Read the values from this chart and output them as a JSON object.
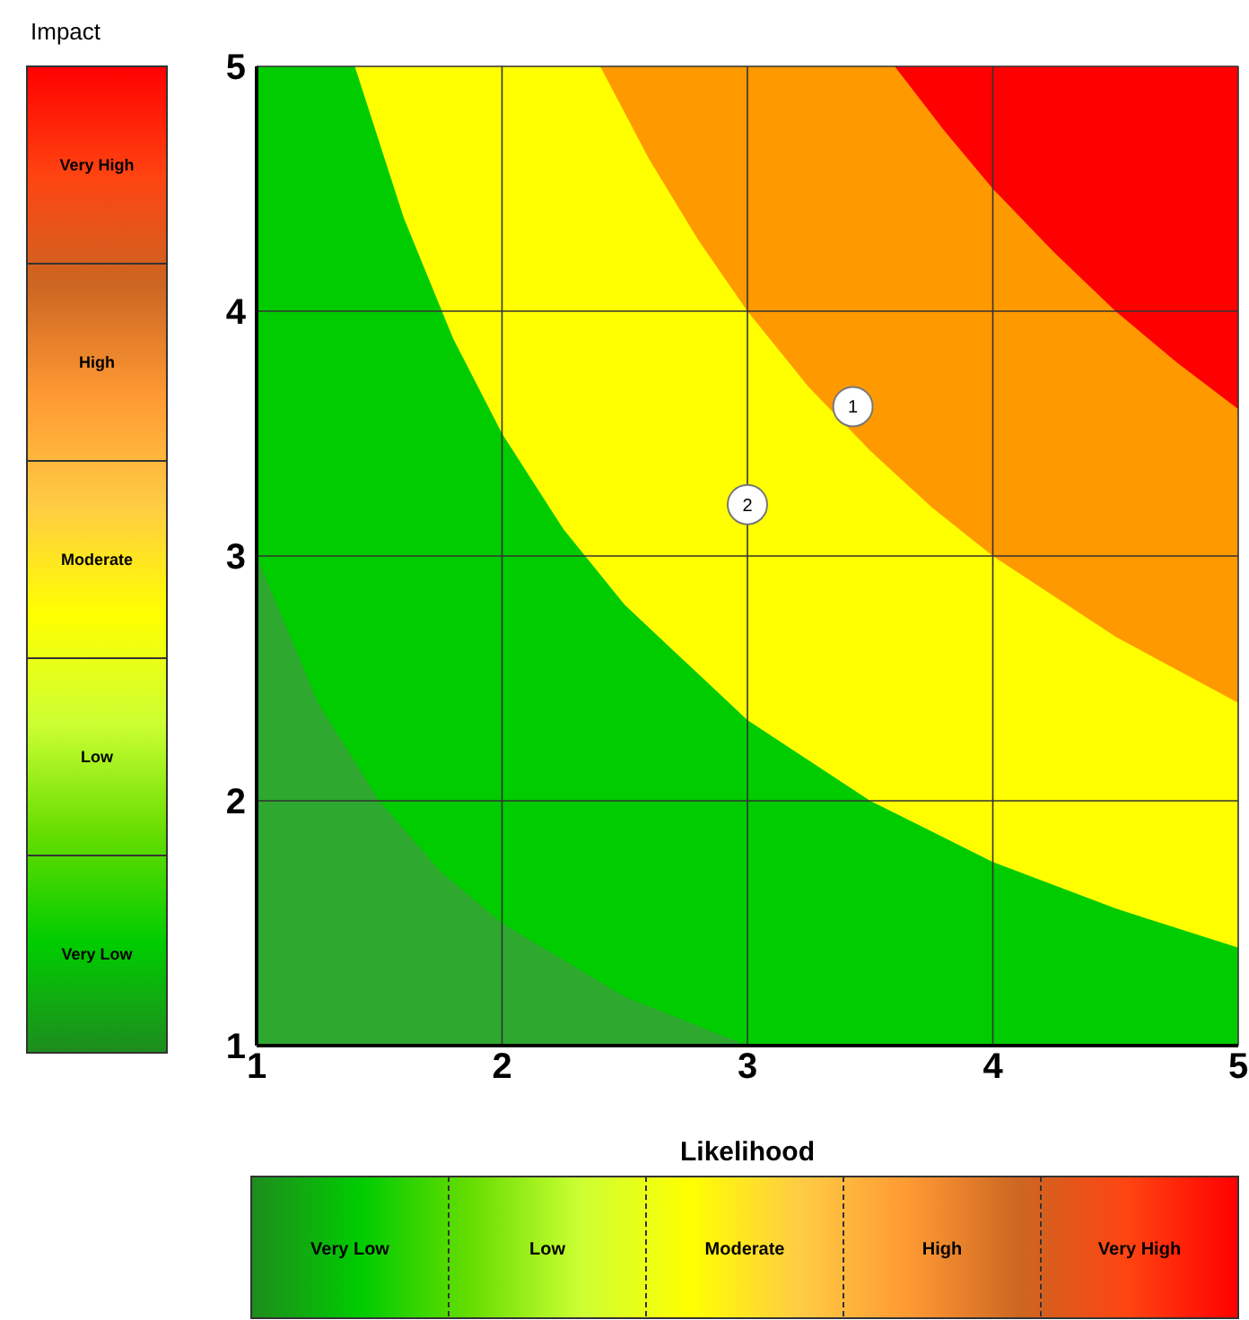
{
  "chart_data": {
    "type": "area",
    "xlabel": "Likelihood",
    "xlim": [
      1,
      5
    ],
    "ylim": [
      1,
      5
    ],
    "xticks": [
      1,
      2,
      3,
      4,
      5
    ],
    "yticks": [
      1,
      2,
      3,
      4,
      5
    ],
    "grid": true,
    "series": [
      {
        "color": "#ff0000",
        "x": [
          3.6,
          5
        ],
        "values": [
          5,
          5
        ]
      },
      {
        "color": "#ff9900",
        "x": [
          2.4,
          3.6,
          3.8,
          4,
          4.25,
          4.5,
          4.75,
          5
        ],
        "values": [
          5,
          5,
          4.74,
          4.5,
          4.24,
          4,
          3.79,
          3.6
        ]
      },
      {
        "color": "#ffff00",
        "x": [
          1.4,
          2.4,
          2.6,
          2.8,
          3,
          3.25,
          3.5,
          3.75,
          4,
          4.5,
          5
        ],
        "values": [
          5,
          5,
          4.62,
          4.29,
          4,
          3.69,
          3.43,
          3.2,
          3,
          2.67,
          2.4
        ]
      },
      {
        "color": "#00cc00",
        "x": [
          1,
          1.4,
          1.6,
          1.8,
          2,
          2.25,
          2.5,
          3,
          3.5,
          4,
          4.5,
          5
        ],
        "values": [
          5,
          5,
          4.38,
          3.89,
          3.5,
          3.11,
          2.8,
          2.33,
          2,
          1.75,
          1.56,
          1.4
        ]
      },
      {
        "color": "#2ea82e",
        "x": [
          1,
          1.25,
          1.5,
          1.75,
          2,
          2.5,
          3
        ],
        "values": [
          3,
          2.4,
          2,
          1.71,
          1.5,
          1.2,
          1
        ]
      },
      {
        "type": "scatter",
        "marker": "circle",
        "color": "#ffffff",
        "x": [
          3.43,
          3.0
        ],
        "values": [
          3.61,
          3.21
        ]
      }
    ],
    "annotations": [
      "Impact",
      "Very High",
      "High",
      "Moderate",
      "Low",
      "Very Low",
      "Very Low",
      "Low",
      "Moderate",
      "High",
      "Very High",
      {
        "text": "1",
        "x": 3.43,
        "y": 3.61
      },
      {
        "text": "2",
        "x": 3.0,
        "y": 3.21
      }
    ]
  }
}
